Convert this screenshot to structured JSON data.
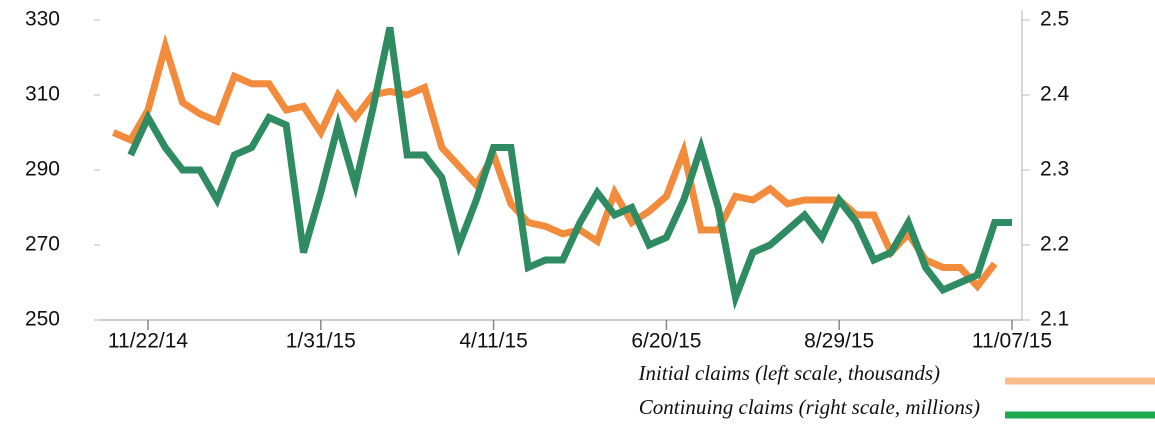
{
  "chart_data": {
    "type": "line",
    "categories": [
      null,
      null,
      "11/22/14",
      null,
      null,
      null,
      null,
      null,
      null,
      null,
      null,
      null,
      "1/31/15",
      null,
      null,
      null,
      null,
      null,
      null,
      null,
      null,
      null,
      "4/11/15",
      null,
      null,
      null,
      null,
      null,
      null,
      null,
      null,
      null,
      "6/20/15",
      null,
      null,
      null,
      null,
      null,
      null,
      null,
      null,
      null,
      "8/29/15",
      null,
      null,
      null,
      null,
      null,
      null,
      null,
      null,
      null,
      "11/07/15"
    ],
    "series": [
      {
        "name": "Initial claims (left scale, thousands)",
        "color": "#f28c3c",
        "legend_color": "#f9bb88",
        "values": [
          300,
          298,
          306,
          323,
          308,
          305,
          303,
          315,
          313,
          313,
          306,
          307,
          300,
          310,
          304,
          310,
          311,
          310,
          312,
          296,
          291,
          286,
          294,
          281,
          276,
          275,
          273,
          274,
          271,
          284,
          276,
          279,
          283,
          295,
          274,
          274,
          283,
          282,
          285,
          281,
          282,
          282,
          282,
          278,
          278,
          268,
          273,
          266,
          264,
          264,
          259,
          265,
          null
        ]
      },
      {
        "name": "Continuing claims (right scale, millions)",
        "color": "#2e8b62",
        "legend_color": "#1ea94f",
        "axis": "y2",
        "values": [
          null,
          2.32,
          2.37,
          2.33,
          2.3,
          2.3,
          2.26,
          2.32,
          2.33,
          2.37,
          2.36,
          2.19,
          2.27,
          2.36,
          2.28,
          2.38,
          2.49,
          2.32,
          2.32,
          2.29,
          2.2,
          2.26,
          2.33,
          2.33,
          2.17,
          2.18,
          2.18,
          2.23,
          2.27,
          2.24,
          2.25,
          2.2,
          2.21,
          2.26,
          2.33,
          2.25,
          2.13,
          2.19,
          2.2,
          2.22,
          2.24,
          2.21,
          2.26,
          2.23,
          2.18,
          2.19,
          2.23,
          2.17,
          2.14,
          2.15,
          2.16,
          2.23,
          2.23
        ]
      }
    ],
    "ylim": [
      250,
      330
    ],
    "yticks": [
      250,
      270,
      290,
      310,
      330
    ],
    "y2lim": [
      2.1,
      2.5
    ],
    "y2ticks": [
      2.1,
      2.2,
      2.3,
      2.4,
      2.5
    ]
  }
}
